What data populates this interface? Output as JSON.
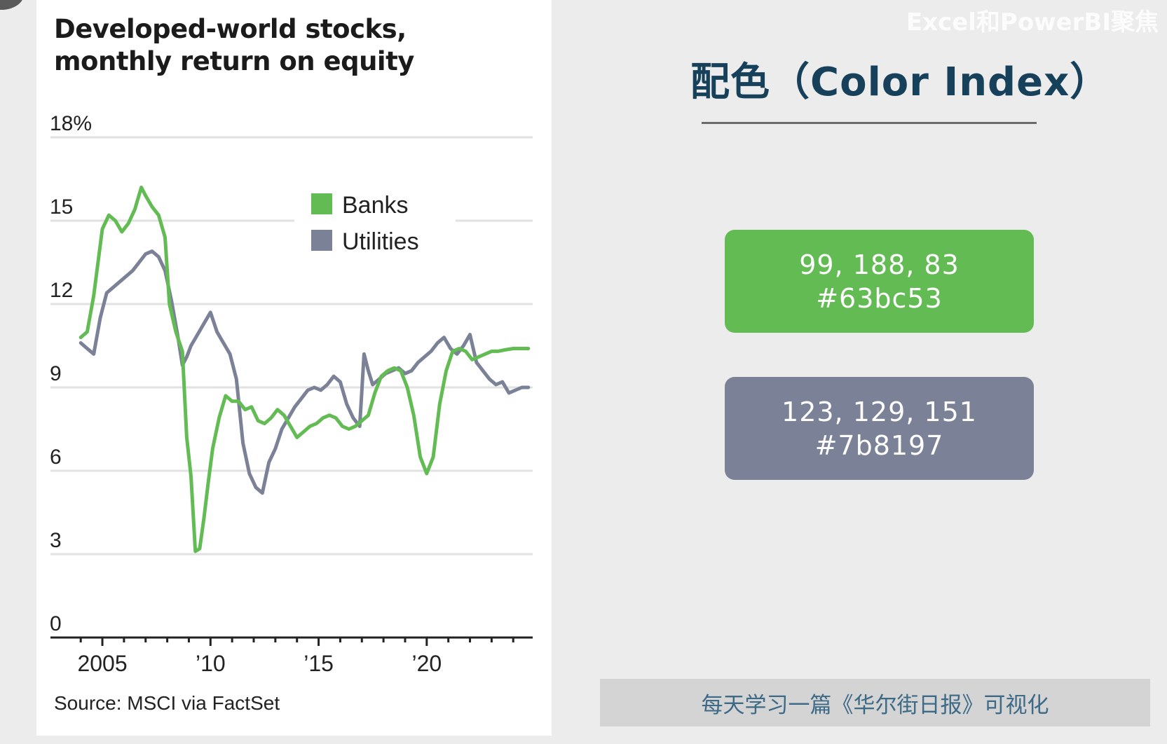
{
  "watermark": "Excel和PowerBI聚焦",
  "right_panel": {
    "title": "配色（Color Index）",
    "swatches": [
      {
        "rgb": "99, 188, 83",
        "hex": "#63bc53",
        "color": "#63bc53"
      },
      {
        "rgb": "123, 129, 151",
        "hex": "#7b8197",
        "color": "#7b8197"
      }
    ],
    "banner": "每天学习一篇《华尔街日报》可视化"
  },
  "chart_data": {
    "type": "line",
    "title": "Developed-world stocks, monthly return on equity",
    "title_lines": [
      "Developed-world stocks,",
      "monthly return on equity"
    ],
    "source": "Source: MSCI via FactSet",
    "ylim": [
      0,
      18
    ],
    "y_ticks": [
      0,
      3,
      6,
      9,
      12,
      15,
      18
    ],
    "y_tick_labels": [
      "0",
      "3",
      "6",
      "9",
      "12",
      "15",
      "18%"
    ],
    "xlim": [
      2002.6,
      2024.9
    ],
    "x_ticks": [
      2005,
      2010,
      2015,
      2020
    ],
    "x_tick_labels": [
      "2005",
      "’10",
      "’15",
      "’20"
    ],
    "grid": true,
    "legend_position": "top-center",
    "series": [
      {
        "name": "Banks",
        "color": "#63bc53",
        "x": [
          2004.0,
          2004.3,
          2004.6,
          2005.0,
          2005.3,
          2005.6,
          2005.9,
          2006.2,
          2006.5,
          2006.8,
          2007.0,
          2007.3,
          2007.6,
          2007.9,
          2008.1,
          2008.4,
          2008.7,
          2008.9,
          2009.1,
          2009.3,
          2009.5,
          2009.7,
          2009.9,
          2010.1,
          2010.4,
          2010.7,
          2011.0,
          2011.3,
          2011.6,
          2011.9,
          2012.2,
          2012.5,
          2012.8,
          2013.1,
          2013.4,
          2013.7,
          2014.0,
          2014.3,
          2014.6,
          2014.9,
          2015.2,
          2015.5,
          2015.8,
          2016.1,
          2016.4,
          2016.7,
          2017.0,
          2017.3,
          2017.6,
          2017.9,
          2018.2,
          2018.5,
          2018.8,
          2019.1,
          2019.4,
          2019.7,
          2020.0,
          2020.3,
          2020.6,
          2020.9,
          2021.2,
          2021.5,
          2021.8,
          2022.1,
          2022.4,
          2022.7,
          2023.0,
          2023.3,
          2023.6,
          2024.0,
          2024.3,
          2024.7
        ],
        "y": [
          10.8,
          11.0,
          12.3,
          14.7,
          15.2,
          15.0,
          14.6,
          14.9,
          15.4,
          16.2,
          15.9,
          15.5,
          15.2,
          14.4,
          12.0,
          11.0,
          10.3,
          7.2,
          5.8,
          3.1,
          3.2,
          4.3,
          5.6,
          6.8,
          7.9,
          8.7,
          8.5,
          8.5,
          8.2,
          8.3,
          7.8,
          7.7,
          7.9,
          8.2,
          8.0,
          7.6,
          7.2,
          7.4,
          7.6,
          7.7,
          7.9,
          8.0,
          7.9,
          7.6,
          7.5,
          7.6,
          7.8,
          8.0,
          8.8,
          9.4,
          9.6,
          9.7,
          9.6,
          9.0,
          8.0,
          6.5,
          5.9,
          6.5,
          8.4,
          9.6,
          10.3,
          10.4,
          10.3,
          10.0,
          10.1,
          10.2,
          10.3,
          10.3,
          10.35,
          10.4,
          10.4,
          10.4
        ],
        "label": "Banks"
      },
      {
        "name": "Utilities",
        "color": "#7b8197",
        "x": [
          2004.0,
          2004.3,
          2004.6,
          2004.9,
          2005.2,
          2005.5,
          2005.8,
          2006.1,
          2006.4,
          2006.7,
          2007.0,
          2007.3,
          2007.6,
          2007.9,
          2008.2,
          2008.5,
          2008.7,
          2008.9,
          2009.1,
          2009.4,
          2009.7,
          2010.0,
          2010.3,
          2010.6,
          2010.9,
          2011.2,
          2011.5,
          2011.8,
          2012.1,
          2012.4,
          2012.7,
          2013.0,
          2013.3,
          2013.6,
          2013.9,
          2014.2,
          2014.5,
          2014.8,
          2015.1,
          2015.4,
          2015.7,
          2016.0,
          2016.3,
          2016.6,
          2016.9,
          2017.1,
          2017.3,
          2017.5,
          2017.8,
          2018.1,
          2018.4,
          2018.7,
          2019.0,
          2019.3,
          2019.6,
          2019.9,
          2020.2,
          2020.5,
          2020.8,
          2021.1,
          2021.4,
          2021.7,
          2022.0,
          2022.3,
          2022.6,
          2022.9,
          2023.2,
          2023.5,
          2023.8,
          2024.1,
          2024.4,
          2024.7
        ],
        "y": [
          10.6,
          10.4,
          10.2,
          11.5,
          12.4,
          12.6,
          12.8,
          13.0,
          13.2,
          13.5,
          13.8,
          13.9,
          13.7,
          13.2,
          12.1,
          10.8,
          9.8,
          10.1,
          10.5,
          10.9,
          11.3,
          11.7,
          11.0,
          10.6,
          10.2,
          9.3,
          7.0,
          5.9,
          5.4,
          5.2,
          6.3,
          6.8,
          7.5,
          7.9,
          8.3,
          8.6,
          8.9,
          9.0,
          8.9,
          9.1,
          9.4,
          9.2,
          8.4,
          7.9,
          7.6,
          10.2,
          9.6,
          9.1,
          9.3,
          9.5,
          9.6,
          9.7,
          9.5,
          9.6,
          9.9,
          10.1,
          10.3,
          10.6,
          10.8,
          10.4,
          10.2,
          10.5,
          10.9,
          9.9,
          9.6,
          9.3,
          9.1,
          9.2,
          8.8,
          8.9,
          9.0,
          9.0
        ],
        "label": "Utilities"
      }
    ]
  }
}
